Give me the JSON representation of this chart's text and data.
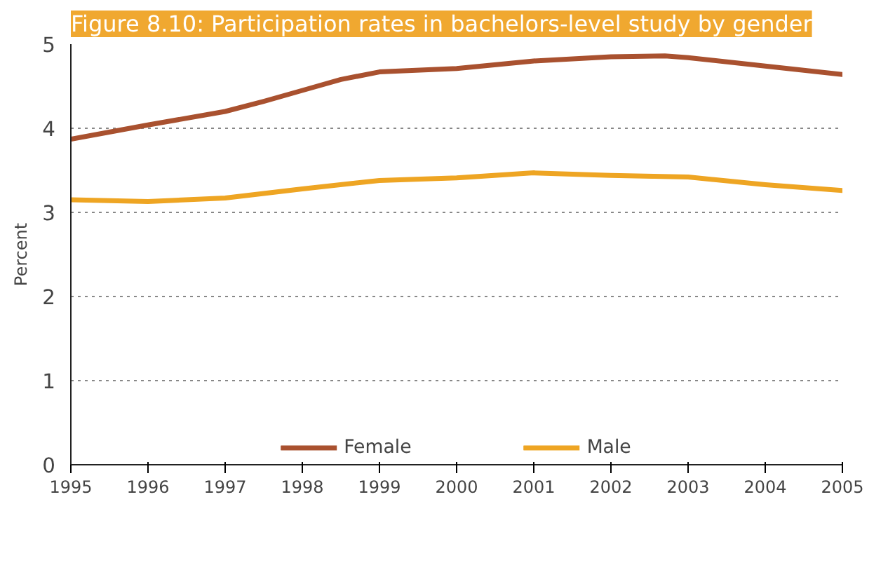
{
  "chart_data": {
    "type": "line",
    "title": "Figure 8.10: Participation rates in bachelors-level study by gender",
    "ylabel": "Percent",
    "xlim": [
      1995,
      2005
    ],
    "xticks": [
      1995,
      1996,
      1997,
      1998,
      1999,
      2000,
      2001,
      2002,
      2003,
      2004,
      2005
    ],
    "ylim": [
      0,
      5
    ],
    "yticks": [
      0,
      1,
      2,
      3,
      4,
      5
    ],
    "grid": "y",
    "legend": "bottom",
    "marker": "none",
    "line_style": "solid",
    "series": [
      {
        "name": "Female",
        "color": "#a9512f",
        "x": [
          1995,
          1996,
          1997,
          1997.5,
          1998,
          1998.5,
          1999,
          2000,
          2001,
          2002,
          2002.7,
          2003,
          2004,
          2005
        ],
        "values": [
          3.87,
          4.04,
          4.2,
          4.32,
          4.45,
          4.58,
          4.67,
          4.71,
          4.8,
          4.85,
          4.86,
          4.84,
          4.74,
          4.64
        ]
      },
      {
        "name": "Male",
        "color": "#eea523",
        "x": [
          1995,
          1996,
          1997,
          1998,
          1999,
          2000,
          2001,
          2002,
          2003,
          2004,
          2005
        ],
        "values": [
          3.15,
          3.13,
          3.17,
          3.28,
          3.38,
          3.41,
          3.47,
          3.44,
          3.42,
          3.33,
          3.26
        ]
      }
    ]
  }
}
